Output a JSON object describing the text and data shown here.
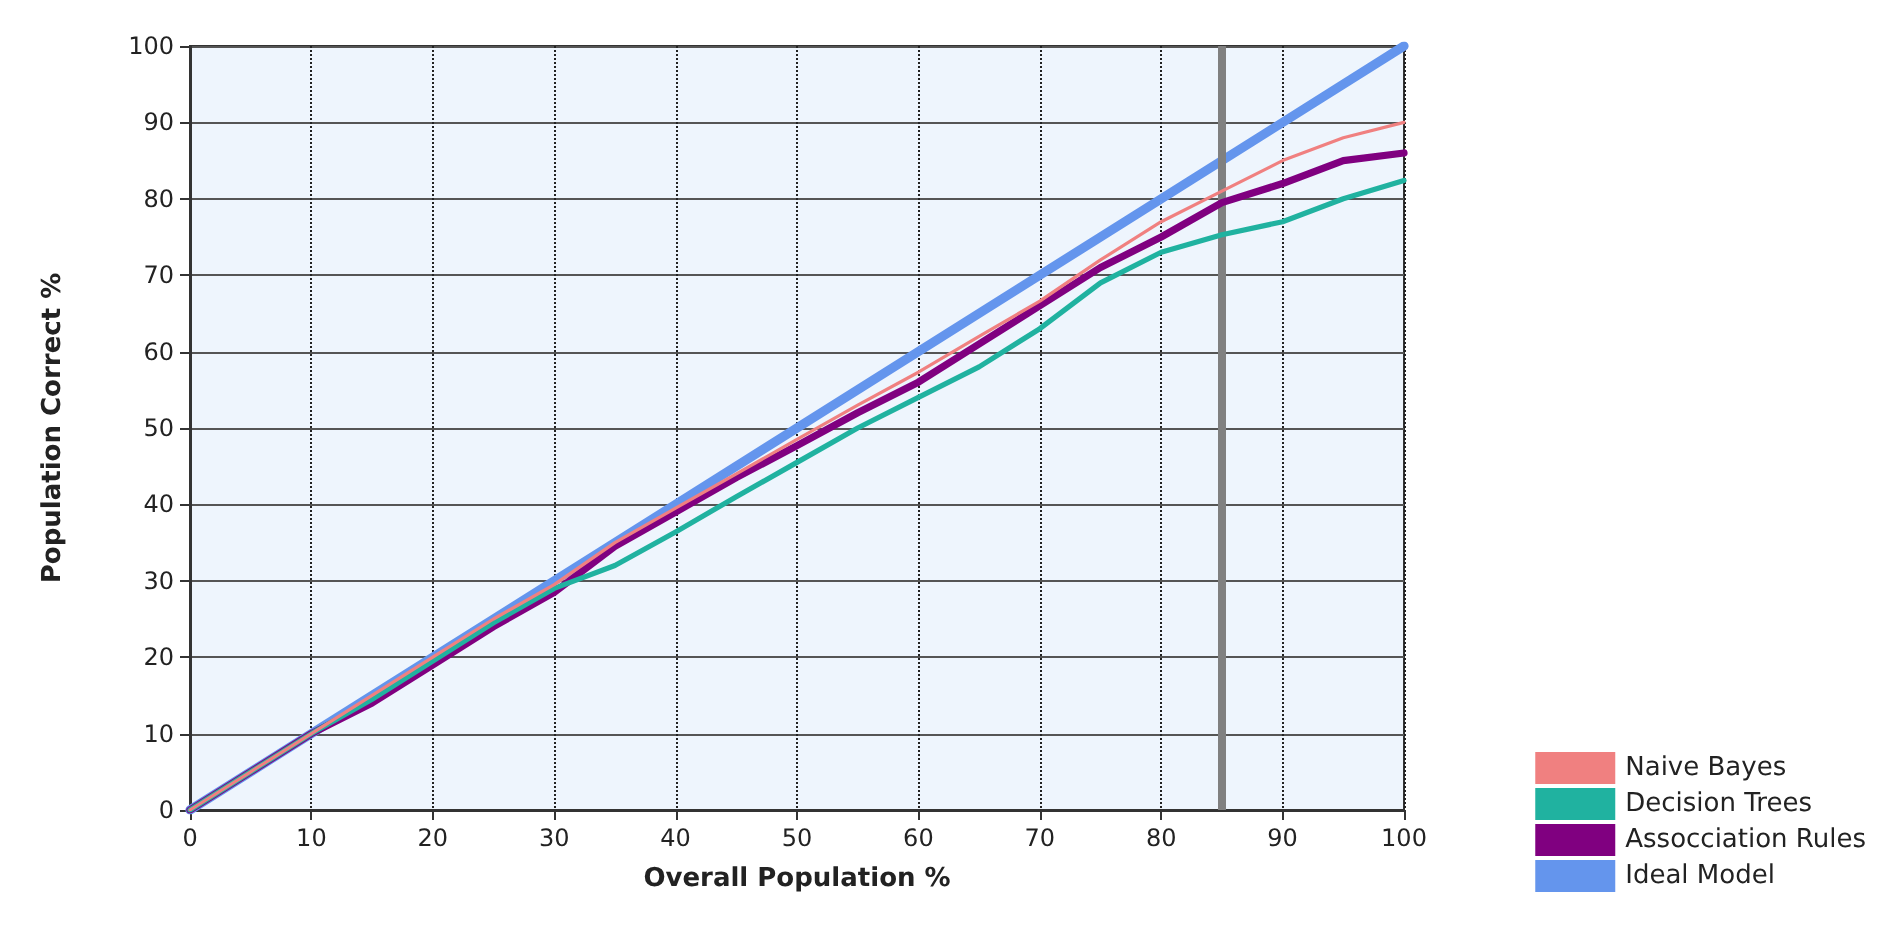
{
  "chart_data": {
    "type": "line",
    "xlabel": "Overall Population %",
    "ylabel": "Population Correct %",
    "x": [
      0,
      5,
      10,
      15,
      20,
      25,
      30,
      35,
      40,
      45,
      50,
      55,
      60,
      65,
      70,
      75,
      80,
      85,
      90,
      95,
      100
    ],
    "series": [
      {
        "name": "Naive Bayes",
        "color": "#f08080",
        "values": [
          0,
          5,
          10,
          15,
          20,
          25,
          29.5,
          35,
          39.5,
          44,
          48.5,
          53,
          57.3,
          62,
          66.6,
          72,
          77,
          81,
          85,
          88,
          90
        ]
      },
      {
        "name": "Decision Trees",
        "color": "#20b2a0",
        "values": [
          0,
          5,
          10,
          14.5,
          19.5,
          24.5,
          29,
          32,
          36.4,
          41,
          45.5,
          50,
          54,
          58,
          63,
          69,
          73,
          75.3,
          77,
          80,
          82.4
        ]
      },
      {
        "name": "Assocciation Rules",
        "color": "#800080",
        "values": [
          0,
          5,
          10,
          14,
          19,
          24,
          28.5,
          34.5,
          39,
          43.5,
          47.7,
          52,
          56,
          61,
          66,
          71,
          75,
          79.5,
          82,
          85,
          86
        ]
      },
      {
        "name": "Ideal Model",
        "color": "#6495ed",
        "x": [
          0,
          100
        ],
        "values": [
          0,
          100
        ]
      }
    ],
    "xlim": [
      0,
      100
    ],
    "ylim": [
      0,
      100
    ],
    "xticks": [
      0,
      10,
      20,
      30,
      40,
      50,
      60,
      70,
      80,
      90,
      100
    ],
    "yticks": [
      0,
      10,
      20,
      30,
      40,
      50,
      60,
      70,
      80,
      90,
      100
    ],
    "grid": true,
    "legend": "bottom right",
    "marker": "none",
    "line_style": "solid",
    "ref_lines": [
      {
        "axis": "x",
        "value": 85,
        "color": "#808080"
      }
    ]
  }
}
